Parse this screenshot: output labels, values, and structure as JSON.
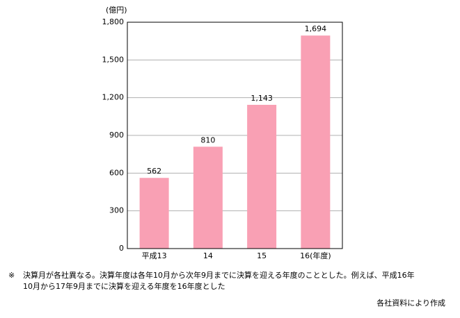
{
  "chart_data": {
    "type": "bar",
    "y_unit": "(億円)",
    "categories": [
      "平成13",
      "14",
      "15",
      "16(年度)"
    ],
    "values": [
      562,
      810,
      1143,
      1694
    ],
    "value_labels": [
      "562",
      "810",
      "1,143",
      "1,694"
    ],
    "color": "#f9a0b4",
    "ylim": [
      0,
      1800
    ],
    "yticks": [
      0,
      300,
      600,
      900,
      {
        "value": 1200,
        "label": "1,200"
      },
      {
        "value": 1500,
        "label": "1,500"
      },
      {
        "value": 1800,
        "label": "1,800"
      }
    ],
    "grid": true,
    "note_mark": "※",
    "note_lines": [
      "決算月が各社異なる。決算年度は各年10月から次年9月までに決算を迎える年度のこととした。例えば、平成16年",
      "10月から17年9月までに決算を迎える年度を16年度とした"
    ],
    "source": "各社資料により作成"
  }
}
